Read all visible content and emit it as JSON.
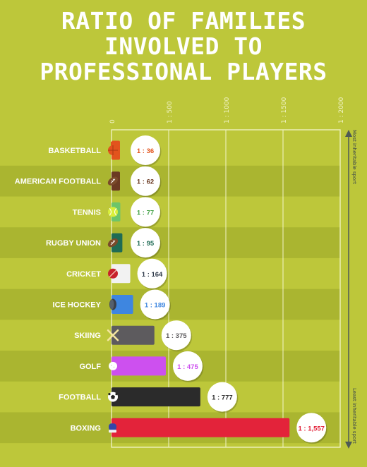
{
  "title_lines": [
    "RATIO OF FAMILIES",
    "INVOLVED TO",
    "PROFESSIONAL PLAYERS"
  ],
  "side_labels": {
    "top": "Most inheritable sport",
    "bottom": "Least inheritable sport"
  },
  "colors": {
    "background": "#bdc73a",
    "band": "#aab530",
    "grid": "#f2f4c8",
    "arrow": "#4e5a55"
  },
  "chart_data": {
    "type": "bar",
    "orientation": "horizontal",
    "title": "RATIO OF FAMILIES INVOLVED TO PROFESSIONAL PLAYERS",
    "xlim": [
      0,
      2000
    ],
    "ticks": [
      {
        "value": 0,
        "label": "0"
      },
      {
        "value": 500,
        "label": "1 : 500"
      },
      {
        "value": 1000,
        "label": "1 : 1000"
      },
      {
        "value": 1500,
        "label": "1 : 1500"
      },
      {
        "value": 2000,
        "label": "1 : 2000"
      }
    ],
    "grid": true,
    "categories": [
      "BASKETBALL",
      "AMERICAN FOOTBALL",
      "TENNIS",
      "RUGBY UNION",
      "CRICKET",
      "ICE HOCKEY",
      "SKIING",
      "GOLF",
      "FOOTBALL",
      "BOXING"
    ],
    "values": [
      36,
      62,
      77,
      95,
      164,
      189,
      375,
      475,
      777,
      1557
    ],
    "value_labels": [
      "1 : 36",
      "1 : 62",
      "1 : 77",
      "1 : 95",
      "1 : 164",
      "1 : 189",
      "1 : 375",
      "1 : 475",
      "1 : 777",
      "1 : 1,557"
    ],
    "bar_colors": [
      "#e2541d",
      "#6b3a22",
      "#6cc56a",
      "#1f6b54",
      "#f2f2f2",
      "#3e86e0",
      "#5d5b5e",
      "#cd50ef",
      "#2b2b2b",
      "#e3233a"
    ],
    "label_colors": [
      "#e2541d",
      "#6b3a22",
      "#47a34a",
      "#1f6b54",
      "#2f3a4a",
      "#3e86e0",
      "#5d5b5e",
      "#cd50ef",
      "#2b2b2b",
      "#e3233a"
    ],
    "icons": [
      "basketball-icon",
      "american-football-icon",
      "tennis-ball-icon",
      "rugby-ball-icon",
      "cricket-ball-icon",
      "hockey-puck-icon",
      "crossed-skis-icon",
      "golf-ball-icon",
      "soccer-ball-icon",
      "boxing-glove-icon"
    ]
  }
}
